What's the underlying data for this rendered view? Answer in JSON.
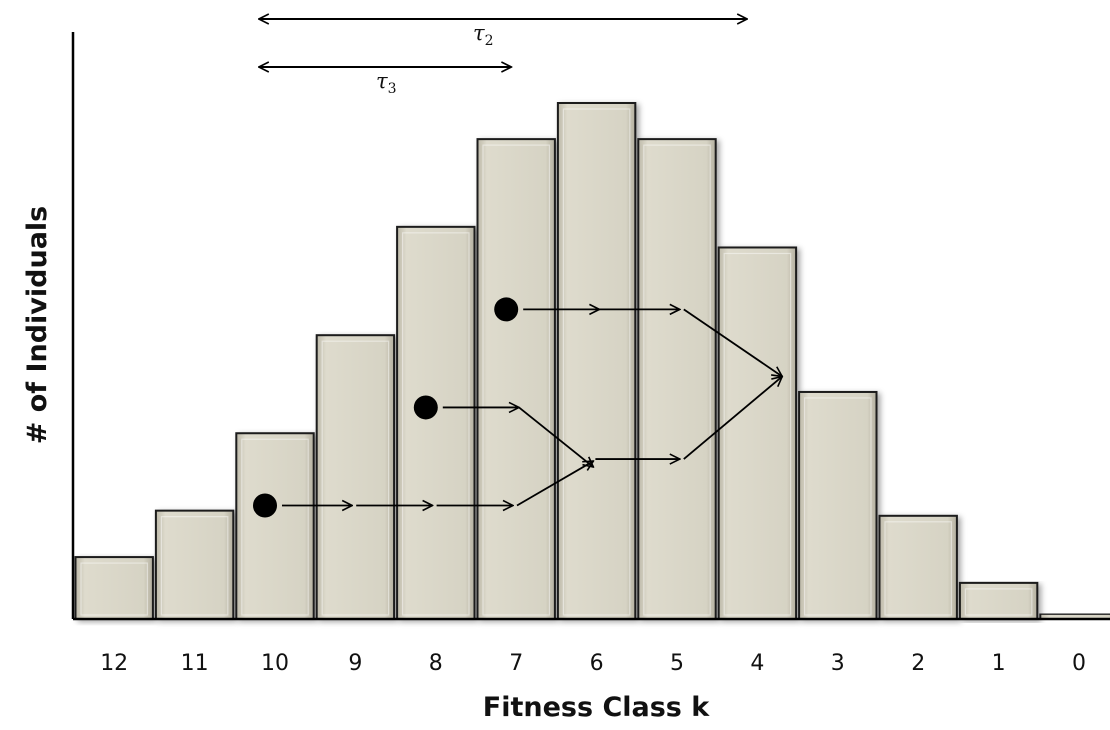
{
  "chart_data": {
    "type": "bar",
    "title": "",
    "xlabel": "Fitness Class k",
    "ylabel": "# of Individuals",
    "categories": [
      "12",
      "11",
      "10",
      "9",
      "8",
      "7",
      "6",
      "5",
      "4",
      "3",
      "2",
      "1",
      "0"
    ],
    "values": [
      12,
      21,
      36,
      55,
      76,
      93,
      100,
      93,
      72,
      44,
      20,
      7,
      1
    ],
    "ylim": [
      0,
      100
    ],
    "grid": false,
    "legend": "none",
    "bar_color": "#d5d1c2",
    "annotations": {
      "intervals": [
        {
          "label": "τ",
          "sub": "2",
          "from": "10",
          "to": "4"
        },
        {
          "label": "τ",
          "sub": "3",
          "from": "10",
          "to": "6"
        }
      ],
      "lineages": [
        {
          "start": "10",
          "start_level": 22,
          "path": [
            "10",
            "9",
            "8",
            "7",
            "6",
            "5",
            "4"
          ]
        },
        {
          "start": "8",
          "start_level": 41,
          "path": [
            "8",
            "7",
            "6",
            "5",
            "4"
          ]
        },
        {
          "start": "7",
          "start_level": 60,
          "path": [
            "7",
            "6",
            "5",
            "4"
          ]
        }
      ]
    }
  }
}
